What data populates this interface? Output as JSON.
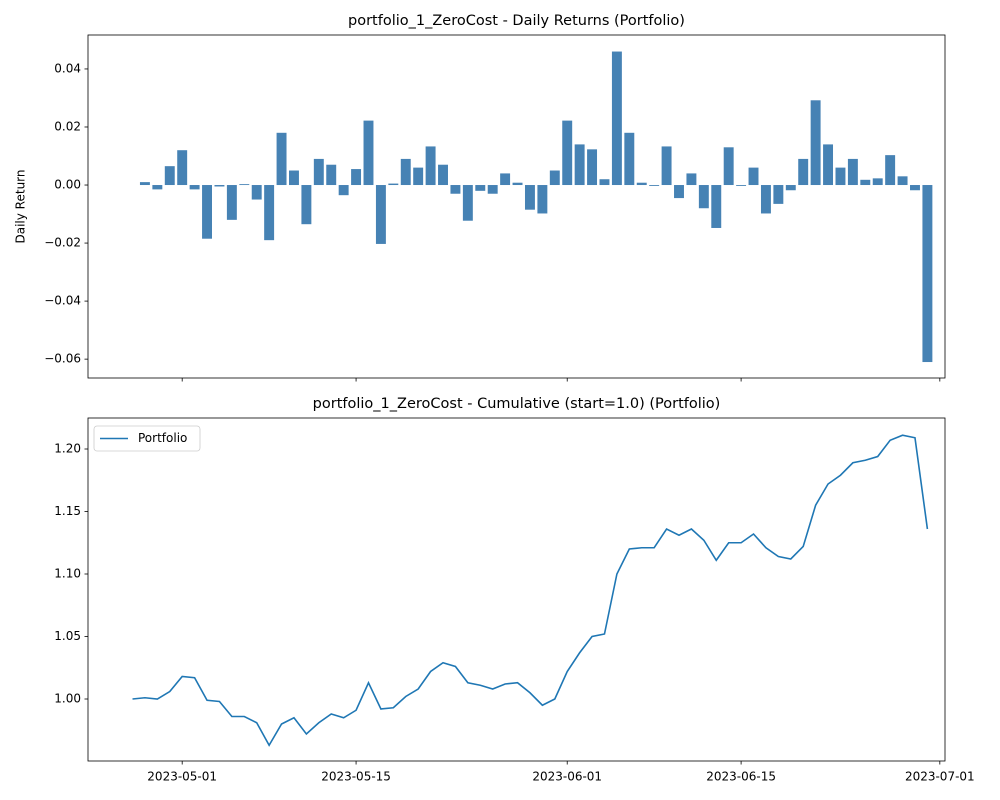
{
  "chart_data": [
    {
      "type": "bar",
      "title": "portfolio_1_ZeroCost - Daily Returns (Portfolio)",
      "ylabel": "Daily Return",
      "color": "#4682b4",
      "x": [
        "2023-04-28",
        "2023-04-29",
        "2023-04-30",
        "2023-05-01",
        "2023-05-02",
        "2023-05-03",
        "2023-05-04",
        "2023-05-05",
        "2023-05-06",
        "2023-05-07",
        "2023-05-08",
        "2023-05-09",
        "2023-05-10",
        "2023-05-11",
        "2023-05-12",
        "2023-05-13",
        "2023-05-14",
        "2023-05-15",
        "2023-05-16",
        "2023-05-17",
        "2023-05-18",
        "2023-05-19",
        "2023-05-20",
        "2023-05-21",
        "2023-05-22",
        "2023-05-23",
        "2023-05-24",
        "2023-05-25",
        "2023-05-26",
        "2023-05-27",
        "2023-05-28",
        "2023-05-29",
        "2023-05-30",
        "2023-05-31",
        "2023-06-01",
        "2023-06-02",
        "2023-06-03",
        "2023-06-04",
        "2023-06-05",
        "2023-06-06",
        "2023-06-07",
        "2023-06-08",
        "2023-06-09",
        "2023-06-10",
        "2023-06-11",
        "2023-06-12",
        "2023-06-13",
        "2023-06-14",
        "2023-06-15",
        "2023-06-16",
        "2023-06-17",
        "2023-06-18",
        "2023-06-19",
        "2023-06-20",
        "2023-06-21",
        "2023-06-22",
        "2023-06-23",
        "2023-06-24",
        "2023-06-25",
        "2023-06-26",
        "2023-06-27",
        "2023-06-28",
        "2023-06-29",
        "2023-06-30"
      ],
      "values": [
        0.001,
        -0.0015,
        0.0065,
        0.012,
        -0.0015,
        -0.0185,
        -0.0005,
        -0.012,
        0.0003,
        -0.005,
        -0.019,
        0.018,
        0.005,
        -0.0135,
        0.009,
        0.007,
        -0.0035,
        0.0055,
        0.0222,
        -0.0203,
        0.0005,
        0.009,
        0.006,
        0.0133,
        0.007,
        -0.003,
        -0.0123,
        -0.002,
        -0.003,
        0.004,
        0.0008,
        -0.0085,
        -0.0098,
        0.005,
        0.0222,
        0.014,
        0.0123,
        0.002,
        0.046,
        0.018,
        0.0008,
        -0.0003,
        0.0133,
        -0.0045,
        0.004,
        -0.008,
        -0.0148,
        0.013,
        -0.0003,
        0.006,
        -0.0098,
        -0.0065,
        -0.0018,
        0.009,
        0.0292,
        0.014,
        0.006,
        0.009,
        0.0018,
        0.0023,
        0.0103,
        0.003,
        -0.0018,
        -0.061
      ],
      "xlim": [
        "2023-04-23T10:00:00Z",
        "2023-07-01T10:00:00Z"
      ],
      "xticks": [
        "2023-05-01",
        "2023-05-15",
        "2023-06-01",
        "2023-06-15",
        "2023-07-01"
      ],
      "ylim": [
        -0.0665,
        0.0517
      ],
      "yticks": [
        {
          "value": -0.06,
          "label": "−0.06"
        },
        {
          "value": -0.04,
          "label": "−0.04"
        },
        {
          "value": -0.02,
          "label": "−0.02"
        },
        {
          "value": 0,
          "label": "0.00"
        },
        {
          "value": 0.02,
          "label": "0.02"
        },
        {
          "value": 0.04,
          "label": "0.04"
        }
      ]
    },
    {
      "type": "line",
      "title": "portfolio_1_ZeroCost - Cumulative (start=1.0) (Portfolio)",
      "legend": "upper left",
      "x": [
        "2023-04-27",
        "2023-04-28",
        "2023-04-29",
        "2023-04-30",
        "2023-05-01",
        "2023-05-02",
        "2023-05-03",
        "2023-05-04",
        "2023-05-05",
        "2023-05-06",
        "2023-05-07",
        "2023-05-08",
        "2023-05-09",
        "2023-05-10",
        "2023-05-11",
        "2023-05-12",
        "2023-05-13",
        "2023-05-14",
        "2023-05-15",
        "2023-05-16",
        "2023-05-17",
        "2023-05-18",
        "2023-05-19",
        "2023-05-20",
        "2023-05-21",
        "2023-05-22",
        "2023-05-23",
        "2023-05-24",
        "2023-05-25",
        "2023-05-26",
        "2023-05-27",
        "2023-05-28",
        "2023-05-29",
        "2023-05-30",
        "2023-05-31",
        "2023-06-01",
        "2023-06-02",
        "2023-06-03",
        "2023-06-04",
        "2023-06-05",
        "2023-06-06",
        "2023-06-07",
        "2023-06-08",
        "2023-06-09",
        "2023-06-10",
        "2023-06-11",
        "2023-06-12",
        "2023-06-13",
        "2023-06-14",
        "2023-06-15",
        "2023-06-16",
        "2023-06-17",
        "2023-06-18",
        "2023-06-19",
        "2023-06-20",
        "2023-06-21",
        "2023-06-22",
        "2023-06-23",
        "2023-06-24",
        "2023-06-25",
        "2023-06-26",
        "2023-06-27",
        "2023-06-28",
        "2023-06-29",
        "2023-06-30"
      ],
      "series": [
        {
          "name": "Portfolio",
          "color": "#1f77b4",
          "values": [
            1.0,
            1.001,
            1.0,
            1.006,
            1.018,
            1.017,
            0.999,
            0.998,
            0.986,
            0.986,
            0.981,
            0.963,
            0.98,
            0.985,
            0.972,
            0.981,
            0.988,
            0.985,
            0.991,
            1.013,
            0.992,
            0.993,
            1.002,
            1.008,
            1.022,
            1.029,
            1.026,
            1.013,
            1.011,
            1.008,
            1.012,
            1.013,
            1.005,
            0.995,
            1.0,
            1.022,
            1.037,
            1.05,
            1.052,
            1.1,
            1.12,
            1.121,
            1.121,
            1.136,
            1.131,
            1.136,
            1.127,
            1.111,
            1.125,
            1.125,
            1.132,
            1.121,
            1.114,
            1.112,
            1.122,
            1.155,
            1.172,
            1.179,
            1.189,
            1.191,
            1.194,
            1.207,
            1.211,
            1.209,
            1.136
          ]
        }
      ],
      "xlim": [
        "2023-04-23T10:00:00Z",
        "2023-07-01T10:00:00Z"
      ],
      "xticks": [
        "2023-05-01",
        "2023-05-15",
        "2023-06-01",
        "2023-06-15",
        "2023-07-01"
      ],
      "ylim": [
        0.9504,
        1.2248
      ],
      "yticks": [
        {
          "value": 1.0,
          "label": "1.00"
        },
        {
          "value": 1.05,
          "label": "1.05"
        },
        {
          "value": 1.1,
          "label": "1.10"
        },
        {
          "value": 1.15,
          "label": "1.15"
        },
        {
          "value": 1.2,
          "label": "1.20"
        }
      ]
    }
  ]
}
